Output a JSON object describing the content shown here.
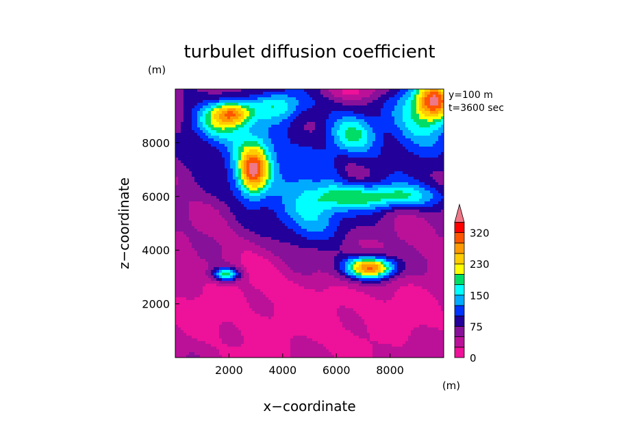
{
  "chart_data": {
    "type": "heatmap",
    "title": "turbulet diffusion coefficient",
    "xlabel": "x−coordinate",
    "ylabel": "z−coordinate",
    "x_unit": "(m)",
    "y_unit": "(m)",
    "annotation_lines": [
      "y=100  m",
      "t=3600 sec"
    ],
    "xlim": [
      0,
      10000
    ],
    "ylim": [
      0,
      10000
    ],
    "x_ticks": [
      2000,
      4000,
      6000,
      8000
    ],
    "x_tick_labels": [
      "2000",
      "4000",
      "6000",
      "8000"
    ],
    "y_ticks": [
      2000,
      4000,
      6000,
      8000
    ],
    "y_tick_labels": [
      "2000",
      "4000",
      "6000",
      "8000"
    ],
    "colorbar": {
      "levels": [
        0,
        25,
        50,
        75,
        100,
        125,
        150,
        175,
        200,
        230,
        260,
        290,
        320
      ],
      "labels": [
        "0",
        "75",
        "150",
        "230",
        "320"
      ],
      "colors": [
        "#ee1199",
        "#bb1199",
        "#881199",
        "#220099",
        "#0033ff",
        "#00aaff",
        "#00ffff",
        "#00dd66",
        "#ffff00",
        "#ffcc00",
        "#ff9900",
        "#ff5500",
        "#ff0000"
      ],
      "overflow_color": "#ee7788",
      "extend": "max"
    },
    "grid": false,
    "features": [
      {
        "x": 5000,
        "z": 1800,
        "value": 10,
        "sx": 4500,
        "sz": 1700
      },
      {
        "x": 5000,
        "z": 7600,
        "value": 95,
        "sx": 4200,
        "sz": 2000
      },
      {
        "x": 2100,
        "z": 9100,
        "value": 215,
        "sx": 500,
        "sz": 300
      },
      {
        "x": 1500,
        "z": 8700,
        "value": 150,
        "sx": 700,
        "sz": 500
      },
      {
        "x": 2900,
        "z": 6900,
        "value": 205,
        "sx": 350,
        "sz": 550
      },
      {
        "x": 2900,
        "z": 7200,
        "value": 150,
        "sx": 600,
        "sz": 800
      },
      {
        "x": 1900,
        "z": 3100,
        "value": 195,
        "sx": 350,
        "sz": 180
      },
      {
        "x": 7300,
        "z": 3350,
        "value": 230,
        "sx": 550,
        "sz": 250
      },
      {
        "x": 7000,
        "z": 3300,
        "value": 140,
        "sx": 850,
        "sz": 400
      },
      {
        "x": 9700,
        "z": 9600,
        "value": 240,
        "sx": 450,
        "sz": 450
      },
      {
        "x": 9200,
        "z": 9000,
        "value": 160,
        "sx": 800,
        "sz": 900
      },
      {
        "x": 7600,
        "z": 6000,
        "value": 165,
        "sx": 1700,
        "sz": 320
      },
      {
        "x": 5000,
        "z": 5300,
        "value": 140,
        "sx": 900,
        "sz": 900
      },
      {
        "x": 3800,
        "z": 9400,
        "value": 140,
        "sx": 700,
        "sz": 400
      },
      {
        "x": 6600,
        "z": 8300,
        "value": 125,
        "sx": 600,
        "sz": 500
      },
      {
        "x": 4400,
        "z": 6000,
        "value": 20,
        "sx": 500,
        "sz": 300
      },
      {
        "x": 5300,
        "z": 6400,
        "value": 30,
        "sx": 300,
        "sz": 400
      },
      {
        "x": 6500,
        "z": 6900,
        "value": 35,
        "sx": 280,
        "sz": 450
      },
      {
        "x": 1600,
        "z": 5500,
        "value": 40,
        "sx": 700,
        "sz": 400
      },
      {
        "x": 500,
        "z": 6800,
        "value": 30,
        "sx": 600,
        "sz": 400
      },
      {
        "x": 8500,
        "z": 7800,
        "value": 40,
        "sx": 1000,
        "sz": 600
      },
      {
        "x": 6700,
        "z": 9900,
        "value": 10,
        "sx": 900,
        "sz": 200
      },
      {
        "x": 1000,
        "z": 4200,
        "value": 50,
        "sx": 600,
        "sz": 500
      }
    ]
  }
}
